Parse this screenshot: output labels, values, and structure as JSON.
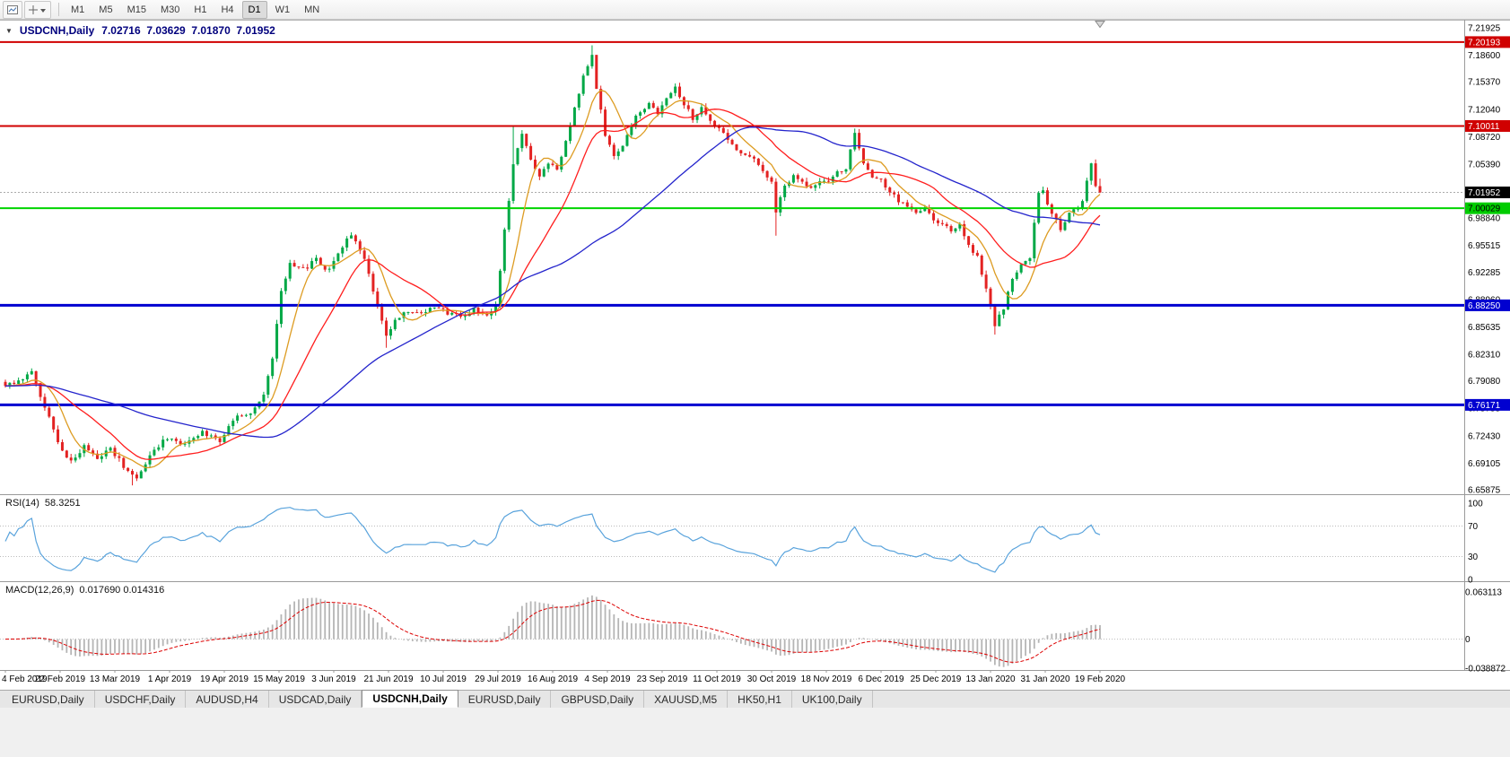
{
  "toolbar": {
    "timeframes": [
      "M1",
      "M5",
      "M15",
      "M30",
      "H1",
      "H4",
      "D1",
      "W1",
      "MN"
    ],
    "active_timeframe": "D1"
  },
  "chart": {
    "collapse_icon": "▼",
    "symbol_period": "USDCNH,Daily",
    "ohlc_text": "7.02716  7.03629  7.01870  7.01952"
  },
  "indicators": {
    "rsi": {
      "label": "RSI(14)",
      "value": "58.3251"
    },
    "macd": {
      "label": "MACD(12,26,9)",
      "values_text": "0.017690 0.014316"
    }
  },
  "tabbar": {
    "tabs": [
      {
        "label": "EURUSD,Daily"
      },
      {
        "label": "USDCHF,Daily"
      },
      {
        "label": "AUDUSD,H4"
      },
      {
        "label": "USDCAD,Daily"
      },
      {
        "label": "USDCNH,Daily",
        "active": true
      },
      {
        "label": "EURUSD,Daily"
      },
      {
        "label": "GBPUSD,Daily"
      },
      {
        "label": "XAUUSD,M5"
      },
      {
        "label": "HK50,H1"
      },
      {
        "label": "UK100,Daily"
      }
    ]
  },
  "chart_data": {
    "type": "candlestick",
    "symbol": "USDCNH",
    "timeframe": "Daily",
    "last": {
      "open": 7.02716,
      "high": 7.03629,
      "low": 7.0187,
      "close": 7.01952
    },
    "current_price": 7.01952,
    "price_axis": {
      "max": 7.21925,
      "min": 6.65875,
      "labels": [
        "7.21925",
        "7.18600",
        "7.15370",
        "7.12040",
        "7.08720",
        "7.05390",
        "6.98840",
        "6.95515",
        "6.92285",
        "6.88960",
        "6.85635",
        "6.82310",
        "6.79080",
        "6.75755",
        "6.72430",
        "6.69105",
        "6.65875"
      ]
    },
    "levels": [
      {
        "value": 7.20193,
        "color": "#d00000",
        "width": 2
      },
      {
        "value": 7.10011,
        "color": "#d00000",
        "width": 2
      },
      {
        "value": 7.00029,
        "color": "#00d400",
        "width": 2
      },
      {
        "value": 6.8825,
        "color": "#0000d0",
        "width": 3
      },
      {
        "value": 6.76171,
        "color": "#0000d0",
        "width": 3
      }
    ],
    "price_labels": [
      {
        "text": "7.20193",
        "value": 7.20193,
        "bg": "#d00000",
        "fg": "#ffffff"
      },
      {
        "text": "7.10011",
        "value": 7.10011,
        "bg": "#d00000",
        "fg": "#ffffff"
      },
      {
        "text": "7.01952",
        "value": 7.01952,
        "bg": "#000000",
        "fg": "#ffffff"
      },
      {
        "text": "7.00029",
        "value": 7.00029,
        "bg": "#00cc00",
        "fg": "#000000"
      },
      {
        "text": "6.88250",
        "value": 6.8825,
        "bg": "#0000d0",
        "fg": "#ffffff"
      },
      {
        "text": "6.76171",
        "value": 6.76171,
        "bg": "#0000d0",
        "fg": "#ffffff"
      }
    ],
    "dates": [
      "4 Feb 2019",
      "22 Feb 2019",
      "13 Mar 2019",
      "1 Apr 2019",
      "19 Apr 2019",
      "15 May 2019",
      "3 Jun 2019",
      "21 Jun 2019",
      "10 Jul 2019",
      "29 Jul 2019",
      "16 Aug 2019",
      "4 Sep 2019",
      "23 Sep 2019",
      "11 Oct 2019",
      "30 Oct 2019",
      "18 Nov 2019",
      "6 Dec 2019",
      "25 Dec 2019",
      "13 Jan 2020",
      "31 Jan 2020",
      "19 Feb 2020"
    ],
    "price_path": [
      [
        0,
        6.782
      ],
      [
        3,
        6.793
      ],
      [
        6,
        6.8
      ],
      [
        9,
        6.76
      ],
      [
        12,
        6.716
      ],
      [
        15,
        6.692
      ],
      [
        18,
        6.713
      ],
      [
        21,
        6.698
      ],
      [
        24,
        6.709
      ],
      [
        27,
        6.688
      ],
      [
        30,
        6.672
      ],
      [
        33,
        6.701
      ],
      [
        37,
        6.722
      ],
      [
        41,
        6.712
      ],
      [
        45,
        6.728
      ],
      [
        49,
        6.718
      ],
      [
        53,
        6.748
      ],
      [
        56,
        6.751
      ],
      [
        59,
        6.772
      ],
      [
        61,
        6.818
      ],
      [
        63,
        6.902
      ],
      [
        65,
        6.932
      ],
      [
        68,
        6.926
      ],
      [
        71,
        6.938
      ],
      [
        74,
        6.924
      ],
      [
        77,
        6.952
      ],
      [
        79,
        6.97
      ],
      [
        82,
        6.936
      ],
      [
        85,
        6.882
      ],
      [
        87,
        6.846
      ],
      [
        89,
        6.866
      ],
      [
        92,
        6.877
      ],
      [
        95,
        6.871
      ],
      [
        98,
        6.88
      ],
      [
        101,
        6.874
      ],
      [
        104,
        6.869
      ],
      [
        107,
        6.877
      ],
      [
        110,
        6.871
      ],
      [
        112,
        6.881
      ],
      [
        114,
        6.972
      ],
      [
        116,
        7.052
      ],
      [
        118,
        7.092
      ],
      [
        120,
        7.06
      ],
      [
        122,
        7.038
      ],
      [
        124,
        7.056
      ],
      [
        126,
        7.046
      ],
      [
        128,
        7.082
      ],
      [
        130,
        7.122
      ],
      [
        132,
        7.162
      ],
      [
        134,
        7.184
      ],
      [
        135,
        7.148
      ],
      [
        137,
        7.088
      ],
      [
        139,
        7.066
      ],
      [
        141,
        7.076
      ],
      [
        143,
        7.103
      ],
      [
        145,
        7.118
      ],
      [
        147,
        7.126
      ],
      [
        149,
        7.116
      ],
      [
        151,
        7.136
      ],
      [
        153,
        7.146
      ],
      [
        155,
        7.128
      ],
      [
        157,
        7.11
      ],
      [
        159,
        7.122
      ],
      [
        161,
        7.106
      ],
      [
        163,
        7.096
      ],
      [
        165,
        7.083
      ],
      [
        167,
        7.07
      ],
      [
        169,
        7.066
      ],
      [
        171,
        7.058
      ],
      [
        173,
        7.046
      ],
      [
        175,
        7.03
      ],
      [
        176,
        6.996
      ],
      [
        178,
        7.026
      ],
      [
        180,
        7.04
      ],
      [
        182,
        7.033
      ],
      [
        184,
        7.026
      ],
      [
        186,
        7.036
      ],
      [
        188,
        7.03
      ],
      [
        190,
        7.043
      ],
      [
        192,
        7.05
      ],
      [
        194,
        7.092
      ],
      [
        196,
        7.056
      ],
      [
        198,
        7.04
      ],
      [
        200,
        7.033
      ],
      [
        202,
        7.02
      ],
      [
        204,
        7.01
      ],
      [
        206,
        7.003
      ],
      [
        208,
        6.996
      ],
      [
        210,
        7.0
      ],
      [
        212,
        6.986
      ],
      [
        214,
        6.98
      ],
      [
        216,
        6.973
      ],
      [
        218,
        6.983
      ],
      [
        220,
        6.953
      ],
      [
        222,
        6.94
      ],
      [
        224,
        6.903
      ],
      [
        226,
        6.86
      ],
      [
        228,
        6.88
      ],
      [
        230,
        6.916
      ],
      [
        232,
        6.93
      ],
      [
        234,
        6.942
      ],
      [
        236,
        7.018
      ],
      [
        237,
        7.024
      ],
      [
        238,
        7.006
      ],
      [
        239,
        6.993
      ],
      [
        240,
        6.986
      ],
      [
        241,
        6.976
      ],
      [
        242,
        6.984
      ],
      [
        243,
        6.994
      ],
      [
        244,
        7.001
      ],
      [
        245,
        6.997
      ],
      [
        246,
        7.01
      ],
      [
        247,
        7.033
      ],
      [
        248,
        7.053
      ],
      [
        249,
        7.04
      ],
      [
        250,
        7.0195
      ]
    ],
    "spikes": [
      [
        134,
        "h",
        7.198
      ],
      [
        226,
        "l",
        6.847
      ],
      [
        194,
        "h",
        7.097
      ],
      [
        87,
        "l",
        6.831
      ],
      [
        29,
        "l",
        6.664
      ],
      [
        116,
        "h",
        7.101
      ],
      [
        176,
        "l",
        6.967
      ]
    ],
    "moving_averages": [
      {
        "period": 8,
        "color": "#dd9c22"
      },
      {
        "period": 20,
        "color": "#ff1e1e"
      },
      {
        "period": 55,
        "color": "#2424cc"
      }
    ],
    "rsi": {
      "period": 14,
      "value": 58.3251,
      "levels": [
        70,
        30
      ],
      "range": [
        0,
        100
      ],
      "color": "#59a3dc",
      "axis_labels": [
        "100",
        "70",
        "30",
        "0"
      ]
    },
    "macd": {
      "fast": 12,
      "slow": 26,
      "signal": 9,
      "main": 0.01769,
      "signal_value": 0.014316,
      "axis_labels": [
        "0.063113",
        "0",
        "-0.038872"
      ],
      "histogram_color": "#b5b5b5",
      "signal_color": "#dd0000"
    },
    "colors": {
      "up": "#00a846",
      "down": "#e32222",
      "background": "#ffffff",
      "current_price_line": "#ababab"
    }
  }
}
